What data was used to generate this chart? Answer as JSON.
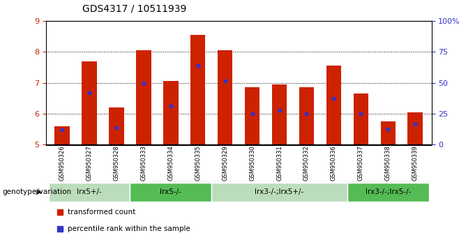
{
  "title": "GDS4317 / 10511939",
  "samples": [
    "GSM950326",
    "GSM950327",
    "GSM950328",
    "GSM950333",
    "GSM950334",
    "GSM950335",
    "GSM950329",
    "GSM950330",
    "GSM950331",
    "GSM950332",
    "GSM950336",
    "GSM950337",
    "GSM950338",
    "GSM950339"
  ],
  "bar_values": [
    5.6,
    7.7,
    6.2,
    8.05,
    7.05,
    8.55,
    8.05,
    6.85,
    6.95,
    6.85,
    7.55,
    6.65,
    5.75,
    6.05
  ],
  "percentile_values": [
    5.48,
    6.68,
    5.55,
    7.0,
    6.25,
    7.55,
    7.05,
    6.0,
    6.1,
    6.0,
    6.5,
    6.0,
    5.5,
    5.65
  ],
  "ymin": 5.0,
  "ymax": 9.0,
  "yticks": [
    5,
    6,
    7,
    8,
    9
  ],
  "right_yticks": [
    0,
    25,
    50,
    75,
    100
  ],
  "right_ytick_labels": [
    "0",
    "25",
    "50",
    "75",
    "100%"
  ],
  "bar_color": "#cc2200",
  "percentile_color": "#3333cc",
  "group_spans": [
    {
      "label": "lrx5+/-",
      "start": 0,
      "end": 2,
      "color": "#bbddbb"
    },
    {
      "label": "lrx5-/-",
      "start": 3,
      "end": 5,
      "color": "#55bb55"
    },
    {
      "label": "lrx3-/-;lrx5+/-",
      "start": 6,
      "end": 10,
      "color": "#bbddbb"
    },
    {
      "label": "lrx3-/-;lrx5-/-",
      "start": 11,
      "end": 13,
      "color": "#55bb55"
    }
  ],
  "group_label_prefix": "genotype/variation",
  "legend_red": "transformed count",
  "legend_blue": "percentile rank within the sample",
  "bar_width": 0.55,
  "background_color": "#ffffff",
  "tick_color_left": "#cc2200",
  "tick_color_right": "#3333cc",
  "sample_area_color": "#cccccc"
}
